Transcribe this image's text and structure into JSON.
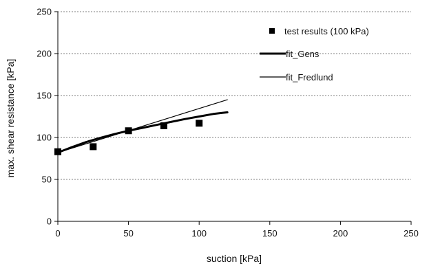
{
  "chart_data": {
    "type": "scatter",
    "xlabel": "suction [kPa]",
    "ylabel": "max. shear resistance [kPa]",
    "xlim": [
      0,
      250
    ],
    "ylim": [
      0,
      250
    ],
    "xticks": [
      0,
      50,
      100,
      150,
      200,
      250
    ],
    "yticks": [
      0,
      50,
      100,
      150,
      200,
      250
    ],
    "grid": "horizontal dashed",
    "legend_position": "top-right",
    "series": [
      {
        "name": "test results (100 kPa)",
        "kind": "markers",
        "marker": "square",
        "color": "#000000",
        "x": [
          0,
          25,
          50,
          75,
          100
        ],
        "y": [
          83,
          89,
          108,
          114,
          117
        ]
      },
      {
        "name": "fit_Gens",
        "kind": "line",
        "color": "#000000",
        "x": [
          0,
          10,
          20,
          30,
          40,
          50,
          60,
          70,
          80,
          90,
          100,
          110,
          120
        ],
        "y": [
          82,
          88.5,
          94.5,
          99.5,
          104,
          108,
          111.5,
          115,
          118.5,
          122,
          125,
          128,
          130
        ]
      },
      {
        "name": "fit_Fredlund",
        "kind": "line",
        "color": "#000000",
        "x": [
          0,
          120
        ],
        "y": [
          82,
          145
        ]
      }
    ]
  }
}
